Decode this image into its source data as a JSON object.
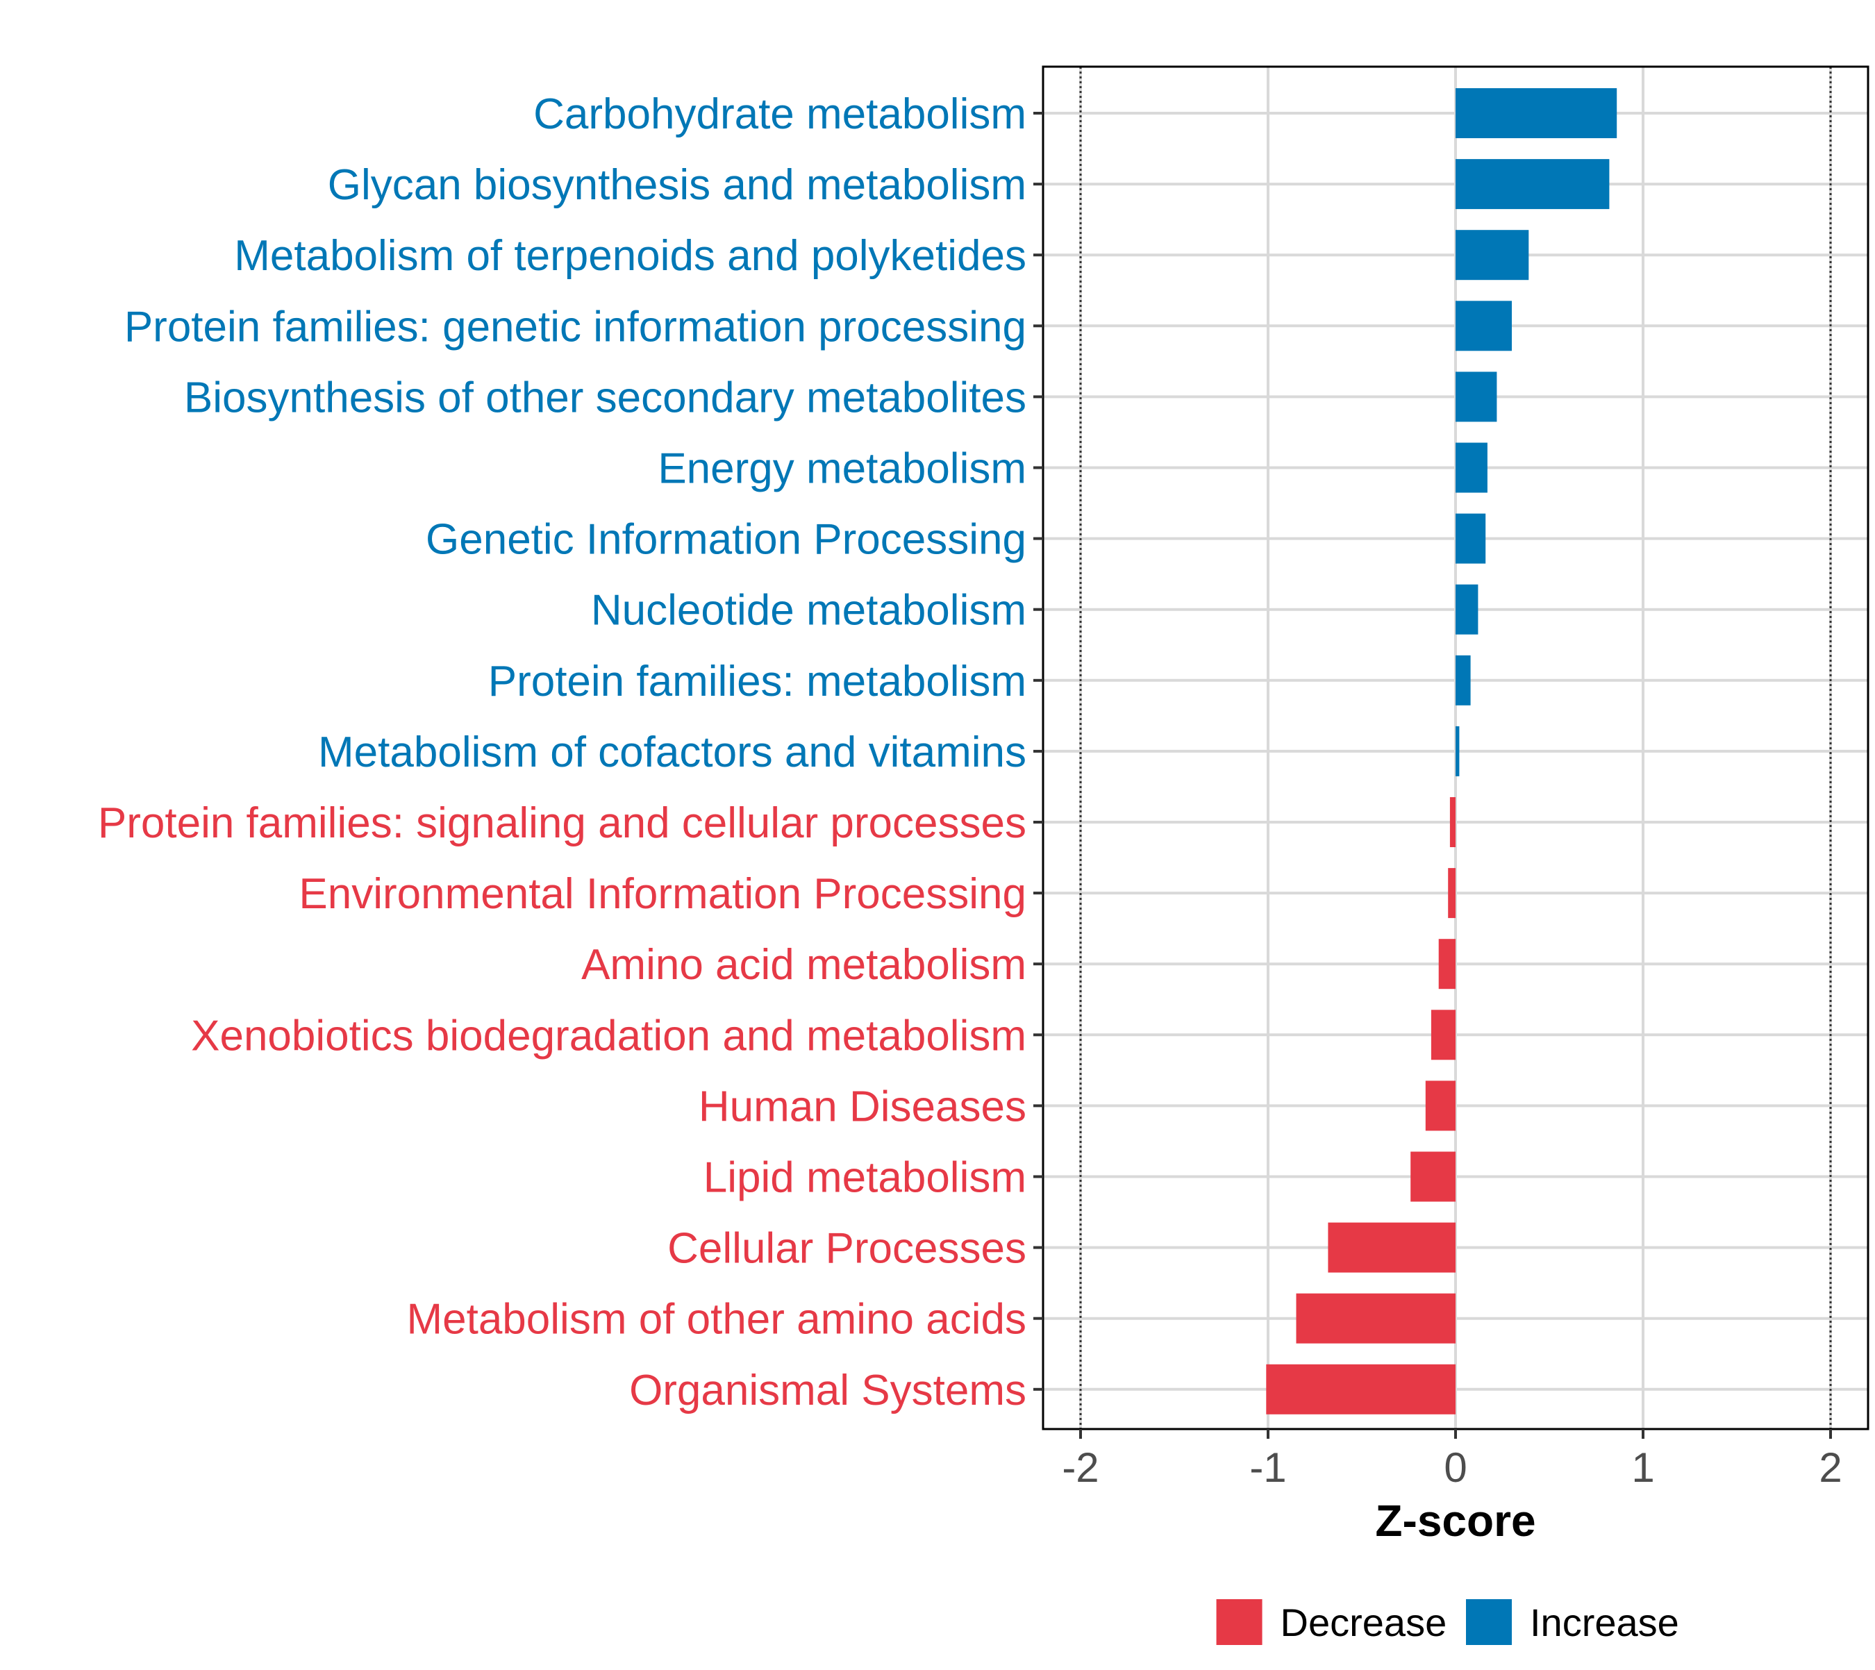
{
  "chart_data": {
    "type": "bar",
    "orientation": "horizontal",
    "title": "",
    "xlabel": "Z-score",
    "ylabel": "",
    "xlim": [
      -2.2,
      2.2
    ],
    "x_ticks": [
      -2,
      -1,
      0,
      1,
      2
    ],
    "x_tick_labels": [
      "-2",
      "-1",
      "0",
      "1",
      "2"
    ],
    "reference_lines": [
      -2,
      2
    ],
    "grid": true,
    "categories": [
      "Carbohydrate metabolism",
      "Glycan biosynthesis and metabolism",
      "Metabolism of terpenoids and polyketides",
      "Protein families: genetic information processing",
      "Biosynthesis of other secondary metabolites",
      "Energy metabolism",
      "Genetic Information Processing",
      "Nucleotide metabolism",
      "Protein families: metabolism",
      "Metabolism of cofactors and vitamins",
      "Protein families: signaling and cellular processes",
      "Environmental Information Processing",
      "Amino acid metabolism",
      "Xenobiotics biodegradation and metabolism",
      "Human Diseases",
      "Lipid metabolism",
      "Cellular Processes",
      "Metabolism of other amino acids",
      "Organismal Systems"
    ],
    "values": [
      0.86,
      0.82,
      0.39,
      0.3,
      0.22,
      0.17,
      0.16,
      0.12,
      0.08,
      0.02,
      -0.03,
      -0.04,
      -0.09,
      -0.13,
      -0.16,
      -0.24,
      -0.68,
      -0.85,
      -1.01
    ],
    "legend": {
      "position": "bottom",
      "entries": [
        {
          "label": "Decrease",
          "color": "#E63946"
        },
        {
          "label": "Increase",
          "color": "#0077B6"
        }
      ]
    },
    "colors": {
      "increase": "#0077B6",
      "decrease": "#E63946"
    }
  }
}
